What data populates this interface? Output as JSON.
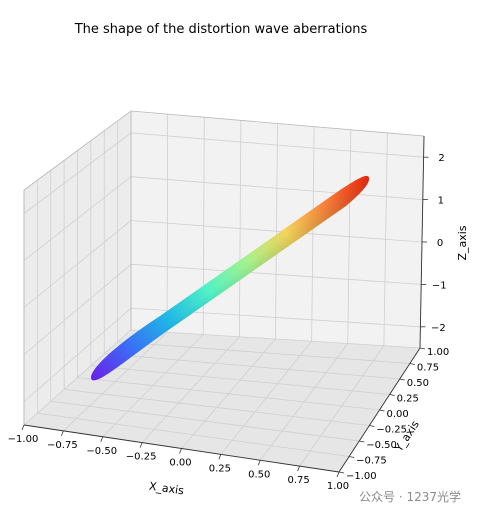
{
  "chart_data": {
    "type": "surface3d",
    "title": "The shape of the distortion wave aberrations",
    "xlabel": "X_axis",
    "ylabel": "Y_axis",
    "zlabel": "Z_axis",
    "xlim": [
      -1.0,
      1.0
    ],
    "ylim": [
      -1.0,
      1.0
    ],
    "zlim": [
      -2.5,
      2.5
    ],
    "x_ticks": [
      "−1.00",
      "−0.75",
      "−0.50",
      "−0.25",
      "0.00",
      "0.25",
      "0.50",
      "0.75",
      "1.00"
    ],
    "y_ticks": [
      "−1.00",
      "−0.75",
      "−0.50",
      "−0.25",
      "0.00",
      "0.25",
      "0.50",
      "0.75",
      "1.00"
    ],
    "z_ticks": [
      "−2",
      "−1",
      "0",
      "1",
      "2"
    ],
    "grid": true,
    "colormap": "rainbow",
    "colormap_stops": [
      "#6a1fe8",
      "#3b6cf5",
      "#1fb8e6",
      "#52f2c5",
      "#a6f28c",
      "#f2d35a",
      "#f77f3a",
      "#f02a10"
    ],
    "surface": {
      "z_min": -2.3,
      "z_max": 2.3,
      "extent_x": [
        -1.0,
        1.0
      ],
      "extent_y": [
        -1.0,
        1.0
      ]
    }
  },
  "watermark": {
    "text": "公众号 · 1237光学"
  }
}
